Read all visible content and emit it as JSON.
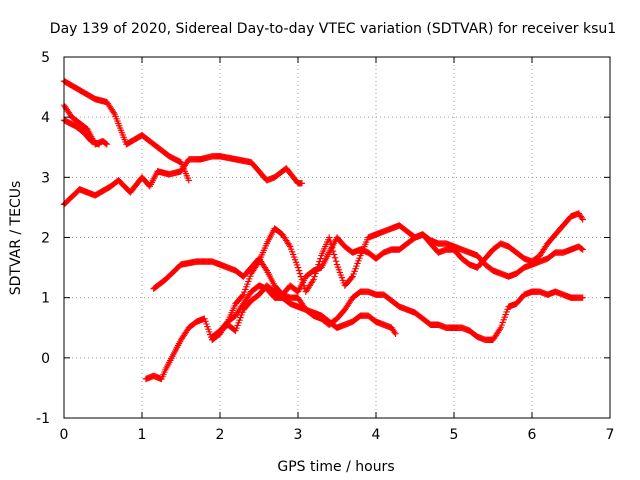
{
  "chart_data": {
    "type": "scatter",
    "title": "Day 139 of 2020, Sidereal Day-to-day VTEC variation (SDTVAR) for receiver ksu1",
    "xlabel": "GPS time / hours",
    "ylabel": "SDTVAR / TECUs",
    "xlim": [
      0,
      7
    ],
    "ylim": [
      -1,
      5
    ],
    "x_ticks": [
      "0",
      "1",
      "2",
      "3",
      "4",
      "5",
      "6",
      "7"
    ],
    "y_ticks": [
      "-1",
      "0",
      "1",
      "2",
      "3",
      "4",
      "5"
    ],
    "grid": true,
    "legend": "none",
    "marker": "plus",
    "color": "#ff0000",
    "series": [
      {
        "x": [
          0,
          0.2,
          0.4,
          0.55,
          0.65,
          0.8,
          1.0,
          1.2,
          1.35,
          1.5,
          1.6
        ],
        "y": [
          4.6,
          4.45,
          4.3,
          4.25,
          4.05,
          3.55,
          3.7,
          3.5,
          3.35,
          3.25,
          2.95
        ]
      },
      {
        "x": [
          0,
          0.1,
          0.2,
          0.3,
          0.4,
          0.5,
          0.55
        ],
        "y": [
          4.2,
          4.0,
          3.9,
          3.8,
          3.55,
          3.6,
          3.55
        ]
      },
      {
        "x": [
          0,
          0.15,
          0.25,
          0.35,
          0.45
        ],
        "y": [
          3.95,
          3.85,
          3.75,
          3.6,
          3.55
        ]
      },
      {
        "x": [
          0,
          0.2,
          0.4,
          0.6,
          0.7,
          0.85,
          1.0,
          1.1,
          1.2,
          1.35,
          1.5,
          1.6,
          1.75,
          1.9,
          2.0,
          2.2,
          2.4,
          2.6,
          2.7,
          2.85,
          3.0,
          3.05
        ],
        "y": [
          2.55,
          2.8,
          2.7,
          2.85,
          2.95,
          2.75,
          3.0,
          2.85,
          3.1,
          3.05,
          3.1,
          3.3,
          3.3,
          3.35,
          3.35,
          3.3,
          3.25,
          2.95,
          3.0,
          3.15,
          2.9,
          2.9
        ]
      },
      {
        "x": [
          1.05,
          1.15,
          1.25,
          1.3,
          1.4,
          1.5,
          1.6,
          1.7,
          1.8,
          1.9,
          2.0,
          2.1,
          2.2,
          2.3,
          2.4,
          2.5,
          2.6,
          2.7,
          2.8,
          2.9,
          3.0,
          3.1,
          3.2,
          3.3,
          3.4,
          3.5,
          3.6,
          3.7,
          3.8,
          3.9,
          4.0,
          4.1,
          4.2,
          4.3,
          4.4,
          4.5,
          4.6,
          4.7,
          4.8,
          4.9,
          5.0,
          5.1,
          5.2,
          5.3,
          5.4,
          5.5,
          5.6,
          5.7,
          5.8,
          5.9,
          6.0,
          6.1,
          6.2,
          6.3,
          6.4,
          6.5,
          6.6,
          6.65
        ],
        "y": [
          -0.35,
          -0.3,
          -0.35,
          -0.2,
          0.05,
          0.3,
          0.5,
          0.6,
          0.65,
          0.3,
          0.45,
          0.55,
          0.45,
          0.8,
          0.95,
          1.05,
          1.2,
          1.1,
          1.05,
          1.2,
          1.1,
          1.35,
          1.45,
          1.5,
          1.75,
          2.0,
          1.85,
          1.75,
          1.8,
          1.75,
          1.65,
          1.75,
          1.8,
          1.8,
          1.9,
          2.0,
          2.05,
          1.95,
          1.9,
          1.9,
          1.85,
          1.8,
          1.75,
          1.7,
          1.55,
          1.45,
          1.4,
          1.35,
          1.4,
          1.5,
          1.55,
          1.6,
          1.65,
          1.75,
          1.75,
          1.8,
          1.85,
          1.8
        ]
      },
      {
        "x": [
          1.15,
          1.3,
          1.5,
          1.7,
          1.9,
          2.0,
          2.1,
          2.2,
          2.3,
          2.4,
          2.5,
          2.6,
          2.7,
          2.8,
          2.9,
          3.0,
          3.1,
          3.2,
          3.3,
          3.4,
          3.5,
          3.6,
          3.7,
          3.8,
          3.9,
          4.0,
          4.1,
          4.2,
          4.3,
          4.4,
          4.5,
          4.6,
          4.7,
          4.8,
          4.9,
          5.0,
          5.1,
          5.2,
          5.3,
          5.4,
          5.5,
          5.6,
          5.7,
          5.8,
          5.9,
          6.0,
          6.1,
          6.2,
          6.3,
          6.4,
          6.5,
          6.6,
          6.65
        ],
        "y": [
          1.15,
          1.3,
          1.55,
          1.6,
          1.6,
          1.55,
          1.5,
          1.45,
          1.35,
          1.5,
          1.65,
          1.45,
          1.2,
          1.05,
          1.0,
          1.0,
          0.8,
          0.7,
          0.65,
          0.55,
          0.65,
          0.8,
          1.0,
          1.1,
          1.1,
          1.05,
          1.05,
          0.95,
          0.85,
          0.8,
          0.75,
          0.65,
          0.55,
          0.55,
          0.5,
          0.5,
          0.5,
          0.45,
          0.35,
          0.3,
          0.3,
          0.5,
          0.85,
          0.9,
          1.05,
          1.1,
          1.1,
          1.05,
          1.1,
          1.05,
          1.0,
          1.0,
          1.0
        ]
      },
      {
        "x": [
          1.9,
          2.0,
          2.1,
          2.2,
          2.3,
          2.4,
          2.5,
          2.6,
          2.7,
          2.8,
          2.9,
          3.0,
          3.1,
          3.2,
          3.3,
          3.4,
          3.5,
          3.6,
          3.7,
          3.8,
          3.9,
          4.0,
          4.1,
          4.2,
          4.25
        ],
        "y": [
          0.35,
          0.45,
          0.6,
          0.7,
          0.9,
          1.1,
          1.2,
          1.15,
          1.0,
          1.0,
          0.9,
          0.85,
          0.8,
          0.75,
          0.7,
          0.6,
          0.5,
          0.55,
          0.6,
          0.7,
          0.7,
          0.6,
          0.55,
          0.5,
          0.4
        ]
      },
      {
        "x": [
          1.9,
          2.0,
          2.1,
          2.2,
          2.3,
          2.4,
          2.5,
          2.6,
          2.7,
          2.8,
          2.9,
          3.0,
          3.1,
          3.2,
          3.3,
          3.4,
          3.5,
          3.6,
          3.7,
          3.8,
          3.9,
          4.0,
          4.1,
          4.2,
          4.3,
          4.4,
          4.5,
          4.6,
          4.7,
          4.8,
          4.9,
          5.0,
          5.1,
          5.2,
          5.3,
          5.4,
          5.5,
          5.6,
          5.7,
          5.8,
          5.9,
          6.0,
          6.1,
          6.2,
          6.3,
          6.4,
          6.5,
          6.6,
          6.65
        ],
        "y": [
          0.3,
          0.4,
          0.6,
          0.9,
          1.05,
          1.4,
          1.6,
          1.9,
          2.15,
          2.05,
          1.85,
          1.5,
          1.1,
          1.3,
          1.7,
          2.0,
          1.55,
          1.2,
          1.35,
          1.7,
          2.0,
          2.05,
          2.1,
          2.15,
          2.2,
          2.1,
          2.0,
          2.05,
          1.9,
          1.75,
          1.8,
          1.8,
          1.65,
          1.55,
          1.5,
          1.65,
          1.8,
          1.9,
          1.85,
          1.75,
          1.65,
          1.6,
          1.7,
          1.9,
          2.05,
          2.2,
          2.35,
          2.4,
          2.3
        ]
      }
    ]
  }
}
